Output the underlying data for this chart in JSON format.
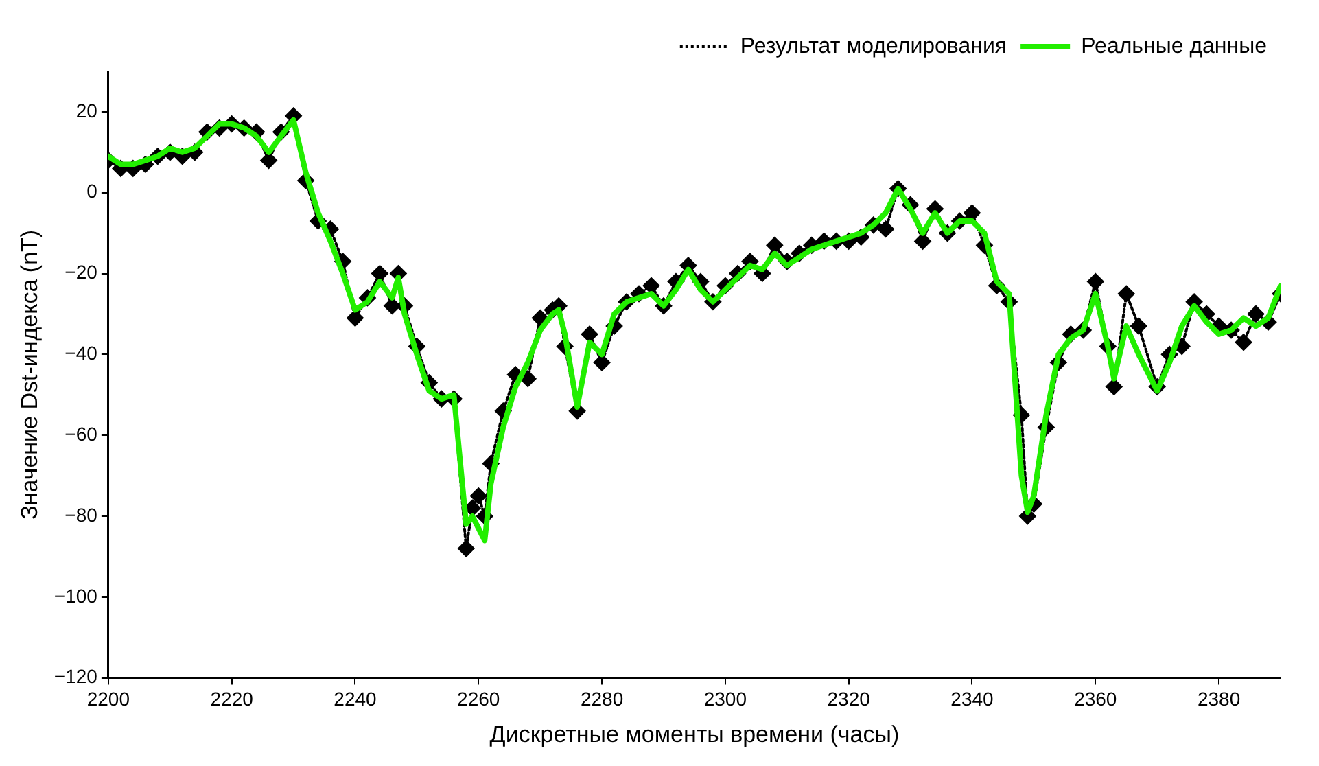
{
  "chart_data": {
    "type": "line",
    "xlabel": "Дискретные моменты времени (часы)",
    "ylabel": "Значение Dst-индекса (nT)",
    "x": [
      2200,
      2202,
      2204,
      2206,
      2208,
      2210,
      2212,
      2214,
      2216,
      2218,
      2220,
      2222,
      2224,
      2226,
      2228,
      2230,
      2232,
      2234,
      2236,
      2238,
      2240,
      2242,
      2244,
      2246,
      2247,
      2248,
      2250,
      2252,
      2254,
      2256,
      2258,
      2259,
      2260,
      2261,
      2262,
      2264,
      2266,
      2268,
      2270,
      2272,
      2273,
      2274,
      2276,
      2278,
      2280,
      2282,
      2284,
      2286,
      2288,
      2290,
      2292,
      2294,
      2296,
      2298,
      2300,
      2302,
      2304,
      2306,
      2308,
      2310,
      2312,
      2314,
      2316,
      2318,
      2320,
      2322,
      2324,
      2326,
      2328,
      2330,
      2332,
      2334,
      2336,
      2338,
      2340,
      2342,
      2344,
      2346,
      2348,
      2349,
      2350,
      2352,
      2354,
      2356,
      2358,
      2360,
      2362,
      2363,
      2365,
      2367,
      2370,
      2372,
      2374,
      2376,
      2378,
      2380,
      2382,
      2384,
      2386,
      2388,
      2390
    ],
    "series": [
      {
        "name": "Результат моделирования",
        "color": "#000000",
        "marker": "diamond",
        "line_style": "dotted",
        "values": [
          8,
          6,
          6,
          7,
          9,
          10,
          9,
          10,
          15,
          16,
          17,
          16,
          15,
          8,
          15,
          19,
          3,
          -7,
          -9,
          -17,
          -31,
          -26,
          -20,
          -28,
          -20,
          -28,
          -38,
          -47,
          -51,
          -51,
          -88,
          -78,
          -75,
          -80,
          -67,
          -54,
          -45,
          -46,
          -31,
          -29,
          -28,
          -38,
          -54,
          -35,
          -42,
          -33,
          -27,
          -25,
          -23,
          -28,
          -22,
          -18,
          -22,
          -27,
          -23,
          -20,
          -17,
          -20,
          -13,
          -17,
          -15,
          -13,
          -12,
          -12,
          -12,
          -11,
          -8,
          -9,
          1,
          -3,
          -12,
          -4,
          -10,
          -7,
          -5,
          -13,
          -23,
          -27,
          -55,
          -80,
          -77,
          -58,
          -42,
          -35,
          -34,
          -22,
          -38,
          -48,
          -25,
          -33,
          -48,
          -40,
          -38,
          -27,
          -30,
          -33,
          -34,
          -37,
          -30,
          -32,
          -25
        ]
      },
      {
        "name": "Реальные данные",
        "color": "#22ee00",
        "marker": "none",
        "line_style": "solid",
        "values": [
          9,
          7,
          7,
          8,
          9,
          11,
          10,
          11,
          14,
          17,
          17,
          16,
          14,
          10,
          14,
          18,
          5,
          -5,
          -12,
          -20,
          -29,
          -27,
          -22,
          -26,
          -21,
          -30,
          -40,
          -49,
          -51,
          -50,
          -82,
          -80,
          -83,
          -86,
          -72,
          -58,
          -48,
          -42,
          -34,
          -30,
          -29,
          -35,
          -53,
          -37,
          -40,
          -30,
          -27,
          -26,
          -25,
          -28,
          -24,
          -19,
          -24,
          -27,
          -24,
          -21,
          -18,
          -19,
          -15,
          -18,
          -16,
          -14,
          -13,
          -12,
          -11,
          -10,
          -8,
          -5,
          1,
          -4,
          -10,
          -5,
          -10,
          -7,
          -7,
          -10,
          -22,
          -25,
          -70,
          -79,
          -75,
          -55,
          -40,
          -36,
          -34,
          -25,
          -38,
          -46,
          -33,
          -40,
          -49,
          -42,
          -33,
          -28,
          -32,
          -35,
          -34,
          -31,
          -33,
          -31,
          -23
        ]
      }
    ],
    "xlim": [
      2200,
      2390
    ],
    "xticks": [
      2200,
      2220,
      2240,
      2260,
      2280,
      2300,
      2320,
      2340,
      2360,
      2380
    ],
    "ylim": [
      -120,
      30
    ],
    "yticks": [
      -120,
      -100,
      -80,
      -60,
      -40,
      -20,
      0,
      20
    ],
    "grid": false,
    "legend": "top right"
  }
}
